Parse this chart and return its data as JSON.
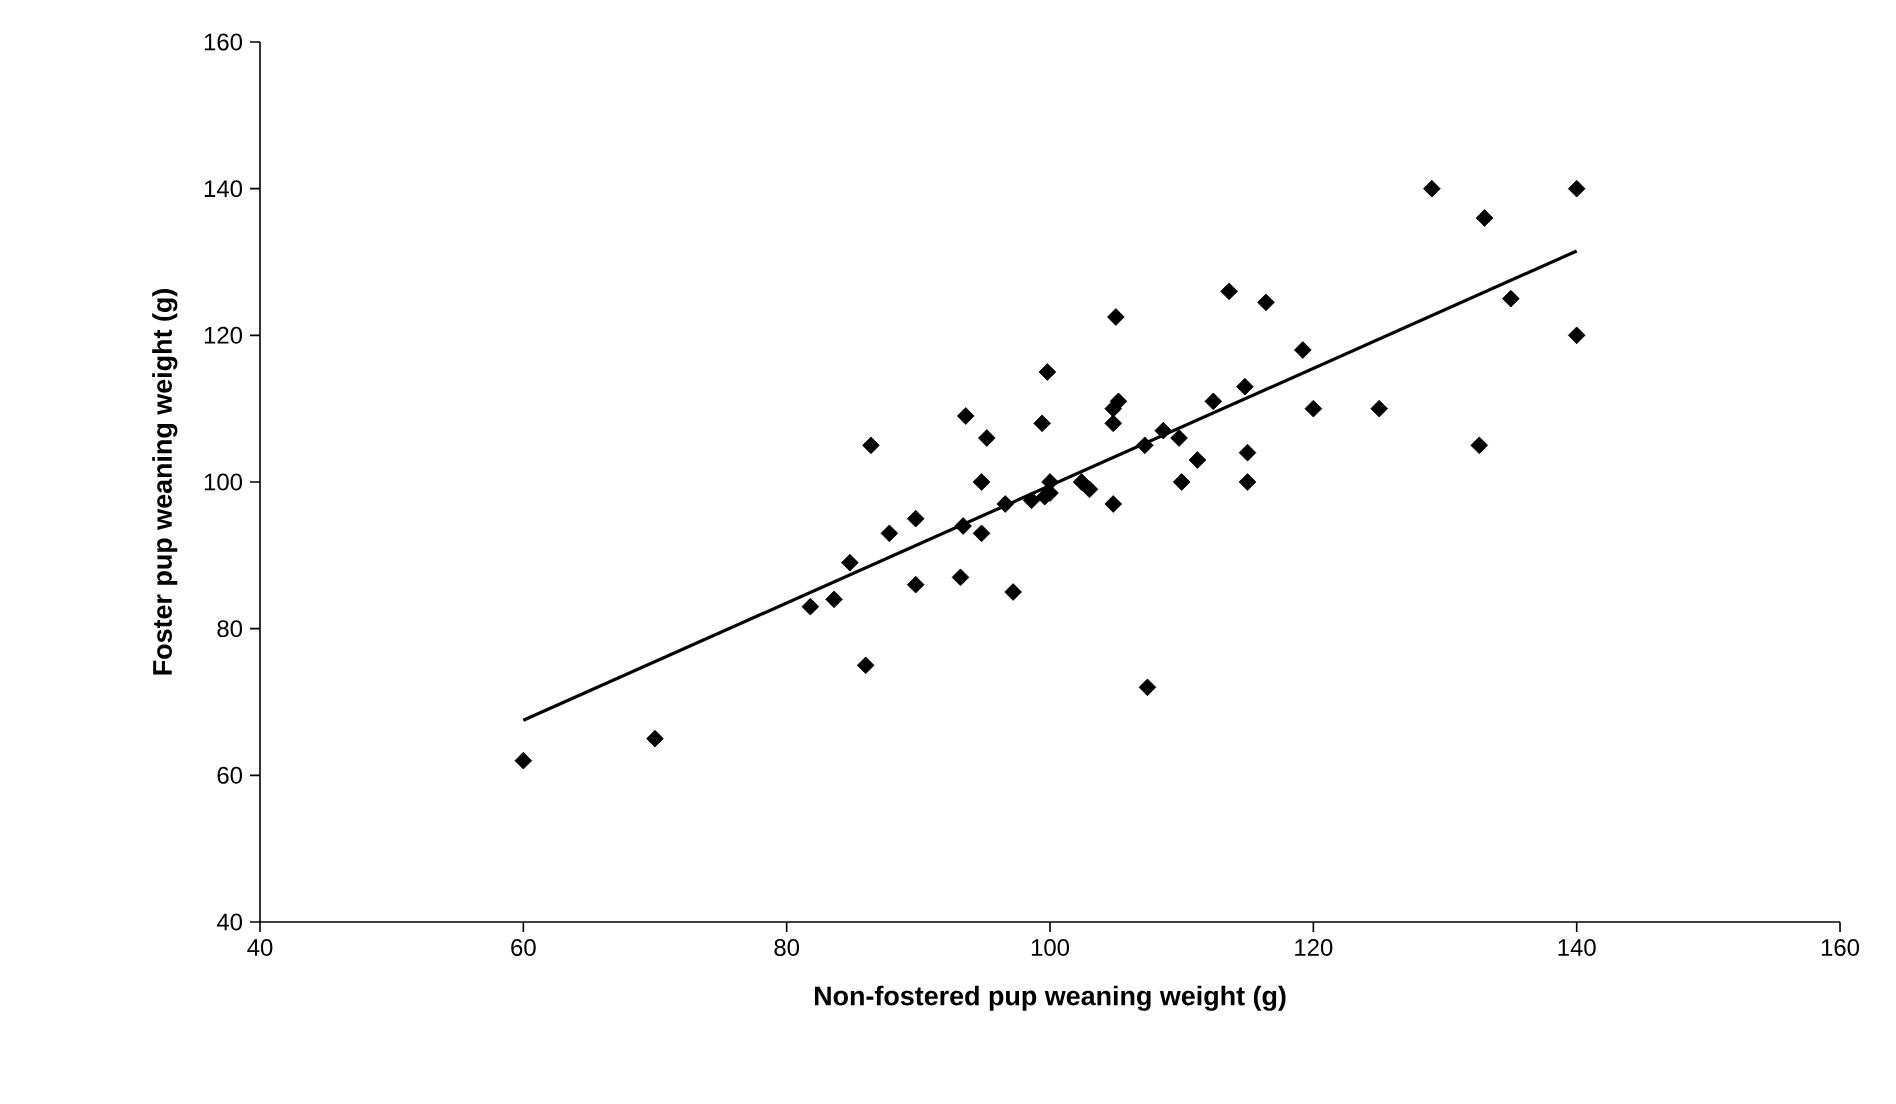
{
  "chart_data": {
    "type": "scatter",
    "xlabel": "Non-fostered pup weaning weight (g)",
    "ylabel": "Foster pup weaning weight (g)",
    "marker": "diamond",
    "xlim": [
      40,
      160
    ],
    "xticks": [
      40,
      60,
      80,
      100,
      120,
      140,
      160
    ],
    "ylim": [
      40,
      160
    ],
    "yticks": [
      40,
      60,
      80,
      100,
      120,
      140,
      160
    ],
    "series": [
      {
        "color": "#000000",
        "x": [
          60,
          70,
          81.8,
          83.6,
          84.8,
          86,
          86.4,
          87.8,
          89.8,
          89.8,
          93.2,
          93.4,
          93.6,
          94.8,
          94.8,
          95.2,
          96.6,
          97.2,
          98.6,
          99.4,
          99.6,
          99.8,
          100,
          100,
          102.4,
          103,
          104.8,
          104.8,
          104.8,
          105,
          105.2,
          107.2,
          107.4,
          108.6,
          109.8,
          110,
          111.2,
          112.4,
          113.6,
          114.8,
          115,
          115,
          116.4,
          119.2,
          120,
          125,
          129,
          132.6,
          133,
          135,
          140,
          140
        ],
        "values": [
          62,
          65,
          83,
          84,
          89,
          75,
          105,
          93,
          95,
          86,
          87,
          94,
          109,
          100,
          93,
          106,
          97,
          85,
          97.5,
          108,
          98,
          115,
          100,
          98.5,
          100,
          99,
          97,
          110,
          108,
          122.5,
          111,
          105,
          72,
          107,
          106,
          100,
          103,
          111,
          126,
          113,
          104,
          100,
          124.5,
          118,
          110,
          110,
          140,
          105,
          136,
          125,
          140,
          120
        ]
      },
      {
        "type": "line",
        "color": "#000000",
        "marker": "none",
        "x": [
          60,
          140
        ],
        "values": [
          67.5,
          131.5
        ]
      }
    ]
  }
}
